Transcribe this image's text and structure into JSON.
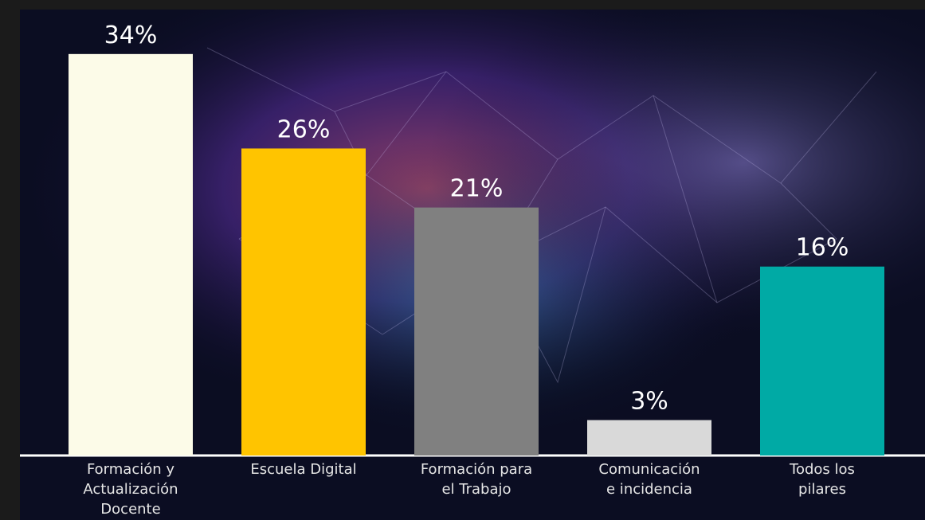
{
  "chart_data": {
    "type": "bar",
    "categories": [
      [
        "Formación y",
        "Actualización",
        "Docente"
      ],
      [
        "Escuela Digital"
      ],
      [
        "Formación para",
        "el Trabajo"
      ],
      [
        "Comunicación",
        "e incidencia"
      ],
      [
        "Todos los",
        "pilares"
      ]
    ],
    "values": [
      34,
      26,
      21,
      3,
      16
    ],
    "value_labels": [
      "34%",
      "26%",
      "21%",
      "3%",
      "16%"
    ],
    "colors": [
      "#fcfbe8",
      "#ffc400",
      "#808080",
      "#d9d9d9",
      "#00aaa5"
    ],
    "ylim": [
      0,
      35
    ]
  }
}
